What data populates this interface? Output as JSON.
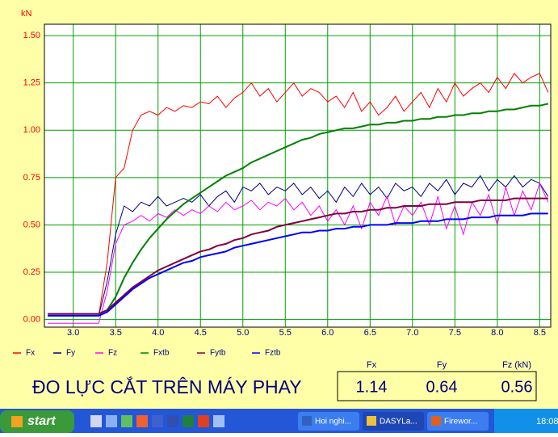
{
  "chart_data": {
    "type": "line",
    "ylabel": "kN",
    "xlim": [
      2.66,
      8.63
    ],
    "ylim": [
      -0.04,
      1.56
    ],
    "xticks": [
      {
        "value": 3,
        "label": "3.0"
      },
      {
        "value": 3.5,
        "label": "3.5"
      },
      {
        "value": 4,
        "label": "4.0"
      },
      {
        "value": 4.5,
        "label": "4.5"
      },
      {
        "value": 5,
        "label": "5.0"
      },
      {
        "value": 5.5,
        "label": "5.5"
      },
      {
        "value": 6,
        "label": "6.0"
      },
      {
        "value": 6.5,
        "label": "6.5"
      },
      {
        "value": 7,
        "label": "7.0"
      },
      {
        "value": 7.5,
        "label": "7.5"
      },
      {
        "value": 8,
        "label": "8.0"
      },
      {
        "value": 8.5,
        "label": "8.5"
      }
    ],
    "yticks": [
      {
        "value": 0,
        "label": "0.00"
      },
      {
        "value": 0.25,
        "label": "0.25"
      },
      {
        "value": 0.5,
        "label": "0.50"
      },
      {
        "value": 0.75,
        "label": "0.75"
      },
      {
        "value": 1,
        "label": "1.00"
      },
      {
        "value": 1.25,
        "label": "1.25"
      },
      {
        "value": 1.5,
        "label": "1.50"
      }
    ],
    "grid": true,
    "x": [
      2.7,
      2.8,
      2.9,
      3.0,
      3.1,
      3.2,
      3.3,
      3.4,
      3.5,
      3.6,
      3.7,
      3.8,
      3.9,
      4.0,
      4.1,
      4.2,
      4.3,
      4.4,
      4.5,
      4.6,
      4.7,
      4.8,
      4.9,
      5.0,
      5.1,
      5.2,
      5.3,
      5.4,
      5.5,
      5.6,
      5.7,
      5.8,
      5.9,
      6.0,
      6.1,
      6.2,
      6.3,
      6.4,
      6.5,
      6.6,
      6.7,
      6.8,
      6.9,
      7.0,
      7.1,
      7.2,
      7.3,
      7.4,
      7.5,
      7.6,
      7.7,
      7.8,
      7.9,
      8.0,
      8.1,
      8.2,
      8.3,
      8.4,
      8.5,
      8.6
    ],
    "series": [
      {
        "name": "Fx",
        "color": "#ff0000",
        "values": [
          0.02,
          0.02,
          0.02,
          0.02,
          0.02,
          0.02,
          0.02,
          0.3,
          0.75,
          0.8,
          1.0,
          1.08,
          1.1,
          1.08,
          1.12,
          1.1,
          1.13,
          1.12,
          1.15,
          1.14,
          1.18,
          1.12,
          1.17,
          1.2,
          1.25,
          1.18,
          1.22,
          1.15,
          1.2,
          1.25,
          1.18,
          1.22,
          1.2,
          1.15,
          1.18,
          1.12,
          1.2,
          1.1,
          1.15,
          1.08,
          1.12,
          1.18,
          1.1,
          1.15,
          1.2,
          1.12,
          1.22,
          1.15,
          1.25,
          1.18,
          1.22,
          1.25,
          1.2,
          1.28,
          1.22,
          1.3,
          1.25,
          1.28,
          1.3,
          1.2
        ]
      },
      {
        "name": "Fy",
        "color": "#000080",
        "values": [
          0.02,
          0.02,
          0.02,
          0.02,
          0.02,
          0.02,
          0.02,
          0.2,
          0.45,
          0.6,
          0.57,
          0.62,
          0.6,
          0.65,
          0.6,
          0.62,
          0.64,
          0.62,
          0.66,
          0.6,
          0.65,
          0.68,
          0.62,
          0.7,
          0.68,
          0.72,
          0.66,
          0.7,
          0.68,
          0.72,
          0.66,
          0.7,
          0.64,
          0.68,
          0.62,
          0.7,
          0.65,
          0.72,
          0.66,
          0.7,
          0.64,
          0.72,
          0.68,
          0.7,
          0.65,
          0.72,
          0.68,
          0.74,
          0.66,
          0.72,
          0.7,
          0.76,
          0.68,
          0.74,
          0.7,
          0.76,
          0.7,
          0.74,
          0.72,
          0.65
        ]
      },
      {
        "name": "Fz",
        "color": "#ff00ff",
        "values": [
          -0.02,
          -0.02,
          -0.02,
          -0.02,
          -0.02,
          -0.02,
          -0.02,
          0.15,
          0.4,
          0.5,
          0.52,
          0.55,
          0.52,
          0.56,
          0.54,
          0.58,
          0.55,
          0.58,
          0.56,
          0.6,
          0.57,
          0.62,
          0.58,
          0.6,
          0.63,
          0.58,
          0.62,
          0.6,
          0.64,
          0.58,
          0.62,
          0.55,
          0.6,
          0.52,
          0.58,
          0.5,
          0.6,
          0.48,
          0.62,
          0.55,
          0.65,
          0.5,
          0.6,
          0.55,
          0.62,
          0.5,
          0.65,
          0.48,
          0.6,
          0.45,
          0.62,
          0.55,
          0.66,
          0.5,
          0.7,
          0.55,
          0.68,
          0.58,
          0.72,
          0.62
        ]
      },
      {
        "name": "Fxtb",
        "color": "#008000",
        "values": [
          0.03,
          0.03,
          0.03,
          0.03,
          0.03,
          0.03,
          0.03,
          0.05,
          0.12,
          0.22,
          0.3,
          0.37,
          0.43,
          0.48,
          0.53,
          0.57,
          0.61,
          0.64,
          0.67,
          0.7,
          0.73,
          0.76,
          0.78,
          0.8,
          0.83,
          0.85,
          0.87,
          0.89,
          0.91,
          0.93,
          0.95,
          0.96,
          0.98,
          0.99,
          1.0,
          1.01,
          1.01,
          1.02,
          1.03,
          1.03,
          1.04,
          1.04,
          1.05,
          1.05,
          1.06,
          1.06,
          1.07,
          1.07,
          1.08,
          1.08,
          1.09,
          1.09,
          1.1,
          1.1,
          1.11,
          1.11,
          1.12,
          1.13,
          1.13,
          1.14
        ]
      },
      {
        "name": "Fytb",
        "color": "#800040",
        "values": [
          0.03,
          0.03,
          0.03,
          0.03,
          0.03,
          0.03,
          0.03,
          0.05,
          0.09,
          0.13,
          0.17,
          0.2,
          0.23,
          0.26,
          0.28,
          0.3,
          0.32,
          0.34,
          0.36,
          0.37,
          0.39,
          0.4,
          0.42,
          0.43,
          0.45,
          0.46,
          0.47,
          0.49,
          0.5,
          0.51,
          0.52,
          0.53,
          0.54,
          0.55,
          0.56,
          0.56,
          0.57,
          0.57,
          0.58,
          0.58,
          0.59,
          0.59,
          0.6,
          0.6,
          0.6,
          0.61,
          0.61,
          0.61,
          0.62,
          0.62,
          0.62,
          0.63,
          0.63,
          0.63,
          0.63,
          0.64,
          0.64,
          0.64,
          0.64,
          0.64
        ]
      },
      {
        "name": "Fztb",
        "color": "#0000ff",
        "values": [
          0.02,
          0.02,
          0.02,
          0.02,
          0.02,
          0.02,
          0.02,
          0.04,
          0.08,
          0.12,
          0.16,
          0.19,
          0.22,
          0.24,
          0.26,
          0.28,
          0.3,
          0.31,
          0.33,
          0.34,
          0.35,
          0.36,
          0.38,
          0.39,
          0.4,
          0.41,
          0.42,
          0.43,
          0.44,
          0.45,
          0.46,
          0.46,
          0.47,
          0.47,
          0.48,
          0.48,
          0.49,
          0.49,
          0.5,
          0.5,
          0.5,
          0.51,
          0.51,
          0.51,
          0.52,
          0.52,
          0.52,
          0.53,
          0.53,
          0.53,
          0.54,
          0.54,
          0.54,
          0.55,
          0.55,
          0.55,
          0.55,
          0.56,
          0.56,
          0.56
        ]
      }
    ]
  },
  "display": {
    "title": "ĐO LỰC CẮT TRÊN MÁY PHAY",
    "readouts": [
      {
        "label": "Fx",
        "value": 1.14
      },
      {
        "label": "Fy",
        "value": 0.64
      },
      {
        "label": "Fz (kN)",
        "value": 0.56
      }
    ]
  },
  "taskbar": {
    "start": "start",
    "tasks": [
      "Hoi nghi...",
      "DASYLa...",
      "Firewor..."
    ],
    "clock": "18:08"
  }
}
